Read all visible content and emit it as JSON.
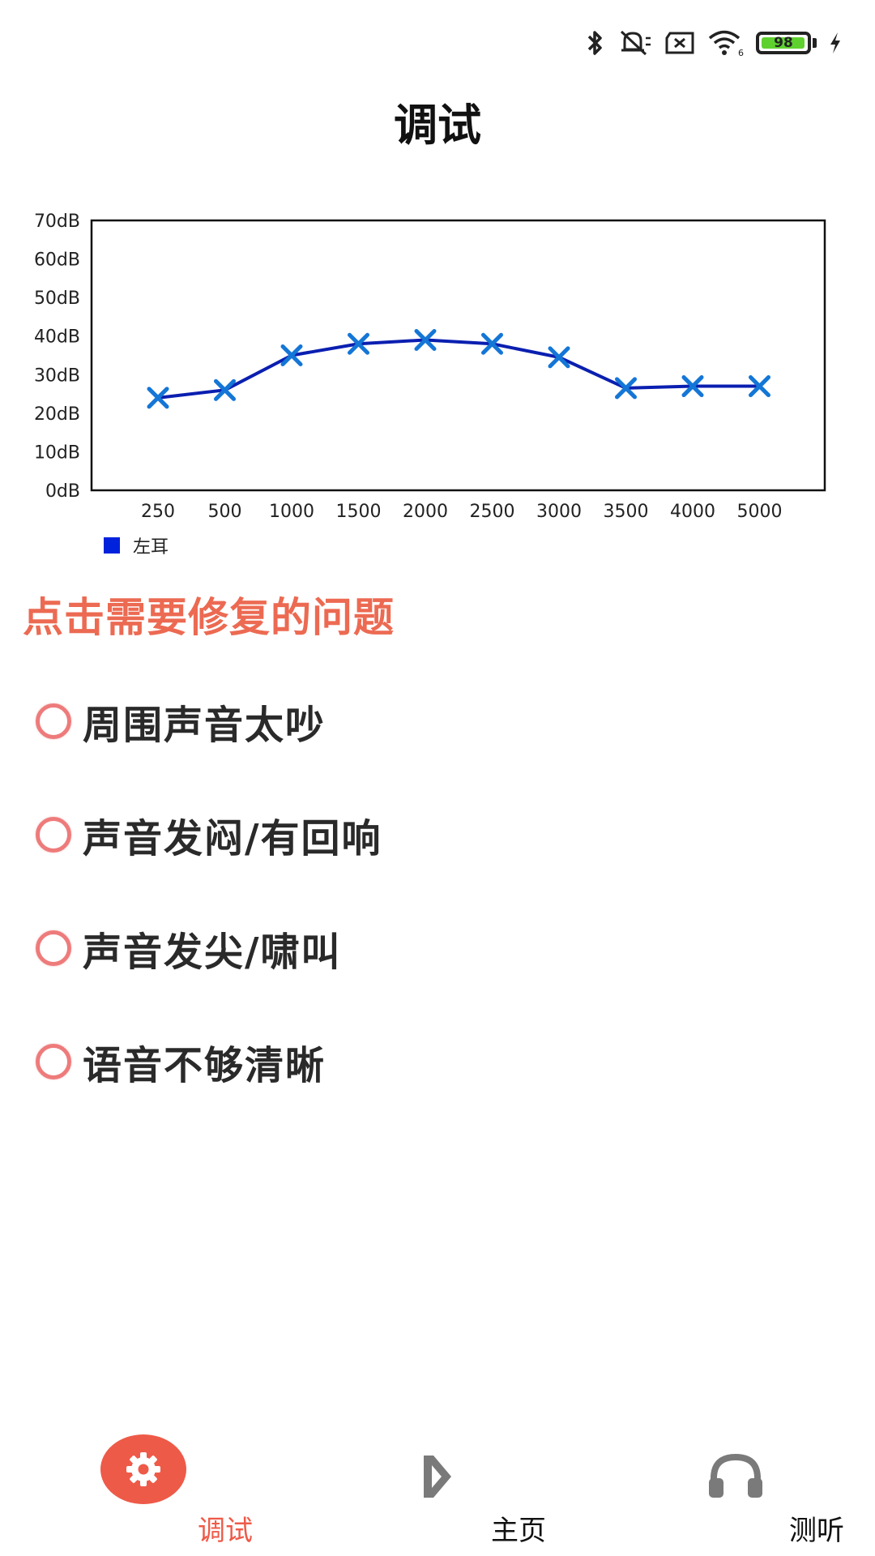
{
  "status_bar": {
    "battery_level": 98,
    "battery_text": "98",
    "icons": [
      "bluetooth-icon",
      "mute-icon",
      "sim-error-icon",
      "wifi-icon",
      "battery-icon",
      "charging-icon"
    ]
  },
  "header": {
    "title": "调试"
  },
  "chart_data": {
    "type": "line",
    "categories": [
      "250",
      "500",
      "1000",
      "1500",
      "2000",
      "2500",
      "3000",
      "3500",
      "4000",
      "5000"
    ],
    "series": [
      {
        "name": "左耳",
        "values": [
          24,
          26,
          35,
          38,
          39,
          38,
          34.5,
          26.5,
          27,
          27
        ],
        "color": "#0a1fb0",
        "marker_color": "#1476d6"
      }
    ],
    "y_ticks": [
      "0dB",
      "10dB",
      "20dB",
      "30dB",
      "40dB",
      "50dB",
      "60dB",
      "70dB"
    ],
    "ylim": [
      0,
      70
    ],
    "legend": {
      "placement": "bottom-left",
      "label": "左耳",
      "swatch_color": "#0022dd"
    },
    "grid": false
  },
  "section": {
    "heading": "点击需要修复的问题"
  },
  "options": [
    {
      "label": "周围声音太吵"
    },
    {
      "label": "声音发闷/有回响"
    },
    {
      "label": "声音发尖/啸叫"
    },
    {
      "label": "语音不够清晰"
    }
  ],
  "bottom_nav": {
    "items": [
      {
        "label": "调试",
        "icon": "gear-icon",
        "active": true
      },
      {
        "label": "主页",
        "icon": "home-icon",
        "active": false
      },
      {
        "label": "测听",
        "icon": "headphones-icon",
        "active": false
      }
    ]
  },
  "colors": {
    "accent": "#ee5a48",
    "heading": "#ec6a52",
    "radio": "#ee7b7b"
  }
}
